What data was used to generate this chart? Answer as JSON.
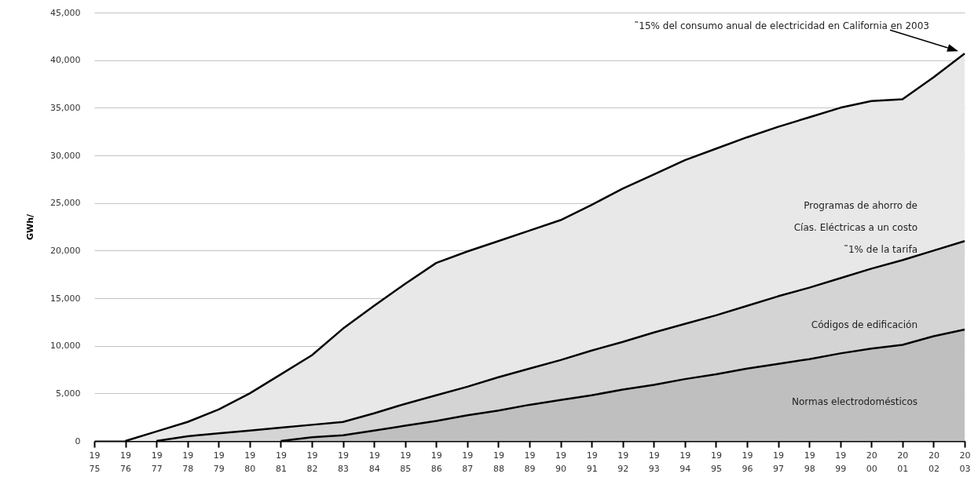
{
  "chart_data": {
    "type": "area",
    "stacked": true,
    "ylabel": "GWh/",
    "categories": [
      "1975",
      "1976",
      "1977",
      "1978",
      "1979",
      "1980",
      "1981",
      "1982",
      "1983",
      "1984",
      "1985",
      "1986",
      "1987",
      "1988",
      "1989",
      "1990",
      "1991",
      "1992",
      "1993",
      "1994",
      "1995",
      "1996",
      "1997",
      "1998",
      "1999",
      "2000",
      "2001",
      "2002",
      "2003"
    ],
    "series": [
      {
        "name": "Normas electrodomésticos",
        "color": "#bfbfbf",
        "values": [
          null,
          null,
          null,
          null,
          null,
          null,
          0,
          400,
          600,
          1100,
          1600,
          2100,
          2700,
          3200,
          3800,
          4300,
          4800,
          5400,
          5900,
          6500,
          7000,
          7600,
          8100,
          8600,
          9200,
          9700,
          10100,
          11000,
          11700
        ]
      },
      {
        "name": "Códigos de edificación",
        "color": "#d4d4d4",
        "values": [
          null,
          null,
          0,
          500,
          800,
          1100,
          1400,
          1300,
          1400,
          1800,
          2300,
          2700,
          3000,
          3500,
          3800,
          4200,
          4700,
          5000,
          5500,
          5800,
          6200,
          6600,
          7100,
          7500,
          7900,
          8400,
          8900,
          9000,
          9300
        ]
      },
      {
        "name": "Programas de ahorro de Cías. Eléctricas a un costo ˜1% de la tarifa",
        "color": "#e8e8e8",
        "values": [
          null,
          0,
          1000,
          1500,
          2500,
          3900,
          5600,
          7300,
          9800,
          11300,
          12600,
          13900,
          14200,
          14300,
          14500,
          14700,
          15300,
          16100,
          16600,
          17200,
          17500,
          17700,
          17800,
          17900,
          17900,
          17600,
          16900,
          18200,
          19700
        ]
      }
    ],
    "ylim": [
      0,
      45000
    ],
    "yticks": [
      0,
      {
        "value": 5000,
        "label": "5,000"
      },
      {
        "value": 10000,
        "label": "10,000"
      },
      {
        "value": 15000,
        "label": "15,000"
      },
      {
        "value": 20000,
        "label": "20,000"
      },
      {
        "value": 25000,
        "label": "25,000"
      },
      {
        "value": 30000,
        "label": "30,000"
      },
      {
        "value": 35000,
        "label": "35,000"
      },
      {
        "value": 40000,
        "label": "40,000"
      },
      {
        "value": 45000,
        "label": "45,000"
      }
    ],
    "grid": "y",
    "annotations": [
      "˜15% del consumo anual de electricidad en California en 2003"
    ]
  }
}
